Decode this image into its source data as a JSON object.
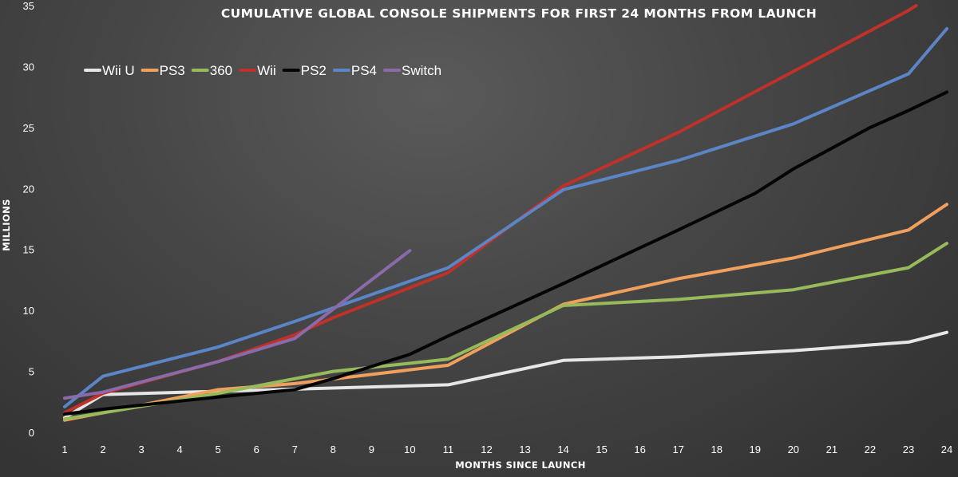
{
  "chart_data": {
    "type": "line",
    "title": "CUMULATIVE GLOBAL CONSOLE SHIPMENTS FOR FIRST 24 MONTHS FROM LAUNCH",
    "xlabel": "MONTHS SINCE LAUNCH",
    "ylabel": "MILLIONS",
    "x_ticks": [
      "1",
      "2",
      "3",
      "4",
      "5",
      "6",
      "7",
      "8",
      "9",
      "10",
      "11",
      "12",
      "13",
      "14",
      "15",
      "16",
      "17",
      "18",
      "19",
      "20",
      "21",
      "22",
      "23",
      "24"
    ],
    "y_ticks": [
      "0",
      "5",
      "10",
      "15",
      "20",
      "25",
      "30",
      "35"
    ],
    "xlim": [
      1,
      24
    ],
    "ylim": [
      0,
      35
    ],
    "grid": false,
    "legend_position": "top-left",
    "series": [
      {
        "name": "Wii U",
        "color": "#e6e6e6",
        "points": [
          [
            1,
            1.2
          ],
          [
            2,
            3.1
          ],
          [
            11,
            3.9
          ],
          [
            14,
            5.9
          ],
          [
            17,
            6.2
          ],
          [
            20,
            6.7
          ],
          [
            23,
            7.4
          ],
          [
            24,
            8.2
          ]
        ]
      },
      {
        "name": "PS3",
        "color": "#f0a05c",
        "points": [
          [
            1,
            1.0
          ],
          [
            2,
            1.6
          ],
          [
            5,
            3.5
          ],
          [
            7,
            4.0
          ],
          [
            11,
            5.5
          ],
          [
            14,
            10.5
          ],
          [
            17,
            12.6
          ],
          [
            20,
            14.3
          ],
          [
            23,
            16.6
          ],
          [
            24,
            18.7
          ]
        ]
      },
      {
        "name": "360",
        "color": "#97bb5a",
        "points": [
          [
            1,
            1.1
          ],
          [
            2,
            1.6
          ],
          [
            5,
            3.2
          ],
          [
            8,
            5.0
          ],
          [
            11,
            6.0
          ],
          [
            14,
            10.4
          ],
          [
            17,
            10.9
          ],
          [
            20,
            11.7
          ],
          [
            23,
            13.5
          ],
          [
            24,
            15.5
          ]
        ]
      },
      {
        "name": "Wii",
        "color": "#c0312a",
        "points": [
          [
            1,
            1.6
          ],
          [
            2,
            3.2
          ],
          [
            5,
            5.8
          ],
          [
            7,
            8.0
          ],
          [
            8,
            9.4
          ],
          [
            11,
            13.1
          ],
          [
            14,
            20.2
          ],
          [
            17,
            24.6
          ],
          [
            20,
            29.6
          ],
          [
            23,
            34.6
          ],
          [
            23.2,
            35.0
          ]
        ]
      },
      {
        "name": "PS2",
        "color": "#050505",
        "points": [
          [
            1,
            1.5
          ],
          [
            2,
            1.9
          ],
          [
            5,
            2.9
          ],
          [
            7,
            3.5
          ],
          [
            8,
            4.4
          ],
          [
            10,
            6.4
          ],
          [
            11,
            7.9
          ],
          [
            14,
            12.2
          ],
          [
            17,
            16.6
          ],
          [
            19,
            19.6
          ],
          [
            20,
            21.6
          ],
          [
            22,
            25.0
          ],
          [
            23,
            26.4
          ],
          [
            24,
            27.9
          ]
        ]
      },
      {
        "name": "PS4",
        "color": "#5b85c6",
        "points": [
          [
            1,
            2.1
          ],
          [
            2,
            4.6
          ],
          [
            5,
            7.0
          ],
          [
            7,
            9.1
          ],
          [
            11,
            13.5
          ],
          [
            14,
            19.9
          ],
          [
            17,
            22.3
          ],
          [
            20,
            25.3
          ],
          [
            23,
            29.4
          ],
          [
            24,
            33.1
          ]
        ]
      },
      {
        "name": "Switch",
        "color": "#8a6aa8",
        "points": [
          [
            1,
            2.8
          ],
          [
            2,
            3.3
          ],
          [
            5,
            5.8
          ],
          [
            7,
            7.7
          ],
          [
            8,
            10.1
          ],
          [
            10,
            14.9
          ]
        ]
      }
    ]
  }
}
